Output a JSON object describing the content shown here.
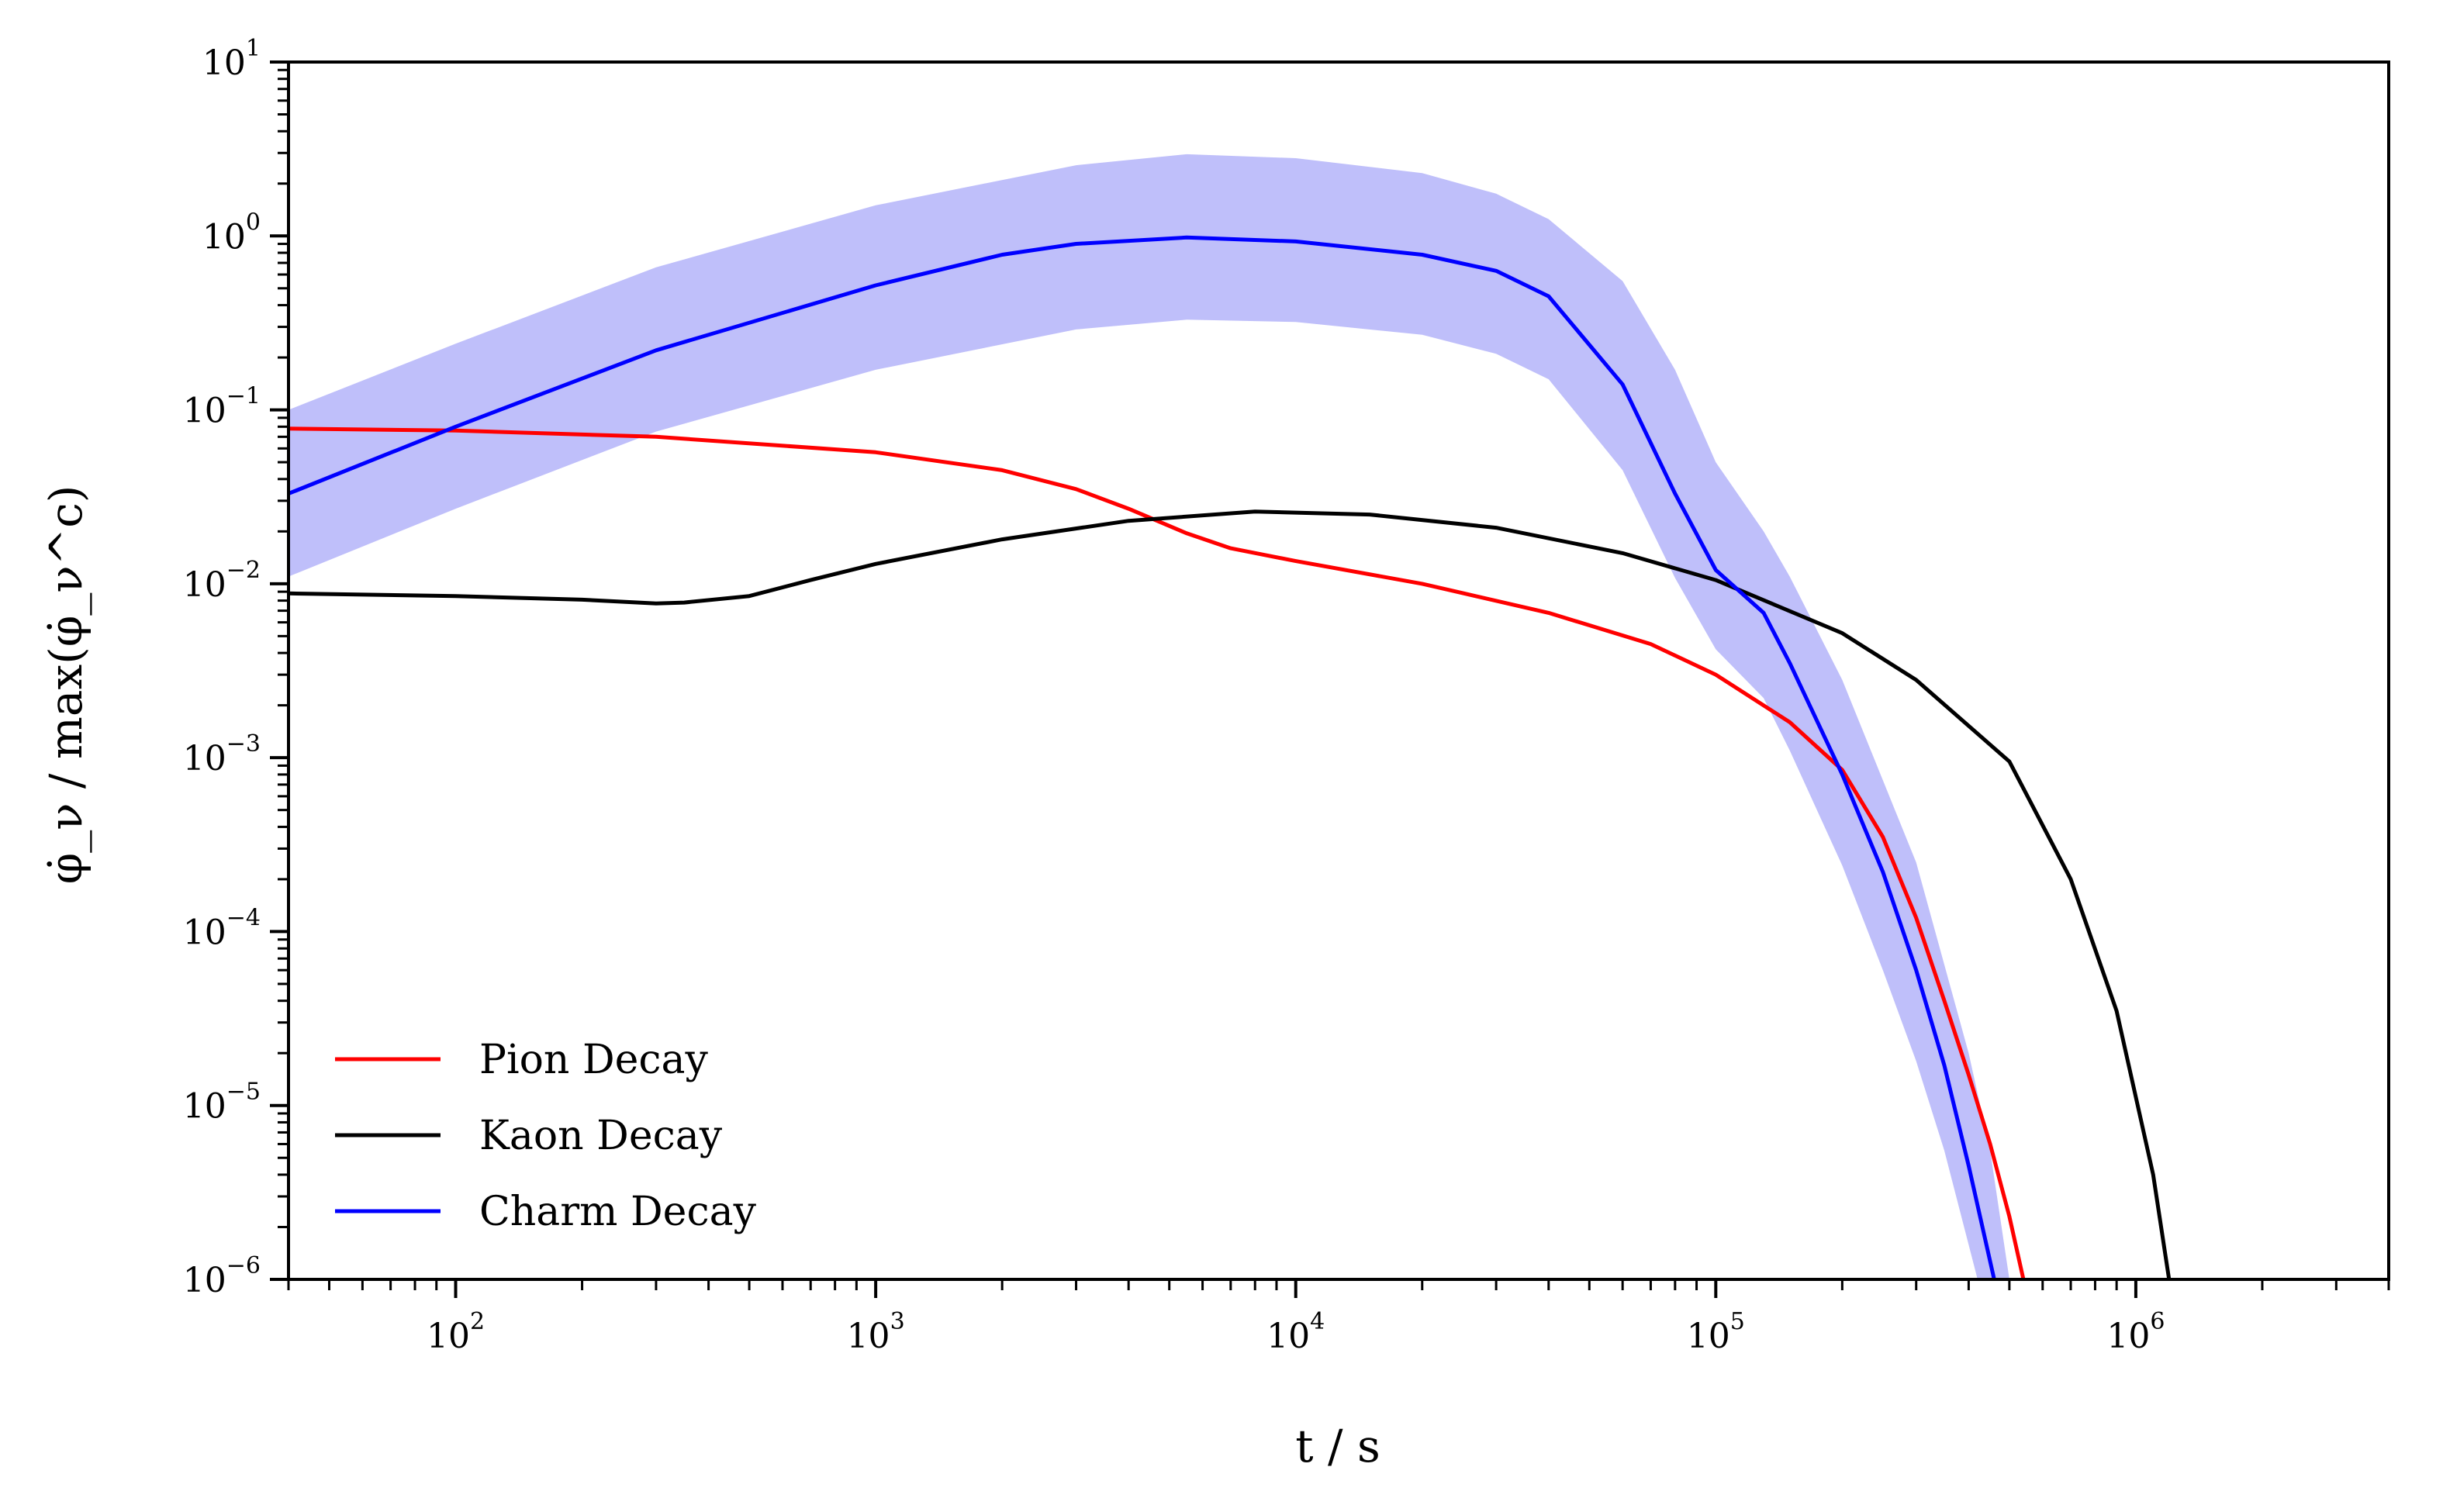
{
  "chart_data": {
    "type": "line",
    "title": "",
    "xlabel": "t / s",
    "ylabel": "φ̇_ν / max(φ̇_ν^c)",
    "x_scale": "log",
    "y_scale": "log",
    "xlim": [
      40,
      4000000
    ],
    "ylim": [
      1e-06,
      10
    ],
    "x_ticks": [
      {
        "value": 100,
        "base": "10",
        "exp": "2"
      },
      {
        "value": 1000,
        "base": "10",
        "exp": "3"
      },
      {
        "value": 10000,
        "base": "10",
        "exp": "4"
      },
      {
        "value": 100000,
        "base": "10",
        "exp": "5"
      },
      {
        "value": 1000000,
        "base": "10",
        "exp": "6"
      }
    ],
    "y_ticks": [
      {
        "value": 1e-06,
        "base": "10",
        "exp": "−6"
      },
      {
        "value": 1e-05,
        "base": "10",
        "exp": "−5"
      },
      {
        "value": 0.0001,
        "base": "10",
        "exp": "−4"
      },
      {
        "value": 0.001,
        "base": "10",
        "exp": "−3"
      },
      {
        "value": 0.01,
        "base": "10",
        "exp": "−2"
      },
      {
        "value": 0.1,
        "base": "10",
        "exp": "−1"
      },
      {
        "value": 1,
        "base": "10",
        "exp": "0"
      },
      {
        "value": 10,
        "base": "10",
        "exp": "1"
      }
    ],
    "grid": false,
    "legend_position": "lower-left",
    "series": [
      {
        "name": "Pion Decay",
        "color": "#ff0000",
        "points": [
          [
            40,
            0.078
          ],
          [
            100,
            0.076
          ],
          [
            300,
            0.07
          ],
          [
            1000,
            0.057
          ],
          [
            2000,
            0.045
          ],
          [
            3000,
            0.035
          ],
          [
            4000,
            0.027
          ],
          [
            5500,
            0.0195
          ],
          [
            7000,
            0.016
          ],
          [
            10000,
            0.0135
          ],
          [
            20000,
            0.01
          ],
          [
            40000,
            0.0068
          ],
          [
            70000,
            0.0045
          ],
          [
            100000,
            0.003
          ],
          [
            150000,
            0.0016
          ],
          [
            200000,
            0.00085
          ],
          [
            250000,
            0.00035
          ],
          [
            300000,
            0.00012
          ],
          [
            350000,
            4e-05
          ],
          [
            400000,
            1.5e-05
          ],
          [
            450000,
            6e-06
          ],
          [
            500000,
            2.3e-06
          ],
          [
            540000,
            1e-06
          ]
        ]
      },
      {
        "name": "Kaon Decay",
        "color": "#000000",
        "points": [
          [
            40,
            0.0088
          ],
          [
            100,
            0.0085
          ],
          [
            200,
            0.0081
          ],
          [
            300,
            0.0077
          ],
          [
            350,
            0.0078
          ],
          [
            500,
            0.0085
          ],
          [
            700,
            0.0105
          ],
          [
            1000,
            0.013
          ],
          [
            2000,
            0.018
          ],
          [
            4000,
            0.023
          ],
          [
            8000,
            0.026
          ],
          [
            15000,
            0.025
          ],
          [
            30000,
            0.021
          ],
          [
            60000,
            0.015
          ],
          [
            100000,
            0.0105
          ],
          [
            200000,
            0.0052
          ],
          [
            300000,
            0.0028
          ],
          [
            500000,
            0.00095
          ],
          [
            700000,
            0.0002
          ],
          [
            900000,
            3.5e-05
          ],
          [
            1100000,
            4e-06
          ],
          [
            1200000,
            1e-06
          ]
        ]
      },
      {
        "name": "Charm Decay",
        "color": "#0000ff",
        "points": [
          [
            40,
            0.033
          ],
          [
            100,
            0.08
          ],
          [
            300,
            0.22
          ],
          [
            1000,
            0.52
          ],
          [
            2000,
            0.78
          ],
          [
            3000,
            0.9
          ],
          [
            5500,
            0.98
          ],
          [
            10000,
            0.93
          ],
          [
            20000,
            0.78
          ],
          [
            30000,
            0.63
          ],
          [
            40000,
            0.45
          ],
          [
            60000,
            0.14
          ],
          [
            80000,
            0.033
          ],
          [
            100000,
            0.012
          ],
          [
            130000,
            0.0068
          ],
          [
            150000,
            0.0035
          ],
          [
            200000,
            0.0008
          ],
          [
            250000,
            0.00022
          ],
          [
            300000,
            6e-05
          ],
          [
            350000,
            1.7e-05
          ],
          [
            400000,
            4.5e-06
          ],
          [
            460000,
            1e-06
          ]
        ],
        "band_upper": [
          [
            40,
            0.1
          ],
          [
            100,
            0.24
          ],
          [
            300,
            0.66
          ],
          [
            1000,
            1.5
          ],
          [
            3000,
            2.55
          ],
          [
            5500,
            2.95
          ],
          [
            10000,
            2.8
          ],
          [
            20000,
            2.3
          ],
          [
            30000,
            1.75
          ],
          [
            40000,
            1.25
          ],
          [
            60000,
            0.55
          ],
          [
            80000,
            0.17
          ],
          [
            100000,
            0.05
          ],
          [
            130000,
            0.02
          ],
          [
            150000,
            0.011
          ],
          [
            200000,
            0.0028
          ],
          [
            300000,
            0.00025
          ],
          [
            400000,
            2e-05
          ],
          [
            450000,
            5.5e-06
          ],
          [
            500000,
            1e-06
          ]
        ],
        "band_lower": [
          [
            40,
            0.011
          ],
          [
            100,
            0.027
          ],
          [
            300,
            0.075
          ],
          [
            1000,
            0.17
          ],
          [
            3000,
            0.29
          ],
          [
            5500,
            0.33
          ],
          [
            10000,
            0.32
          ],
          [
            20000,
            0.27
          ],
          [
            30000,
            0.21
          ],
          [
            40000,
            0.15
          ],
          [
            60000,
            0.045
          ],
          [
            80000,
            0.0108
          ],
          [
            100000,
            0.0042
          ],
          [
            130000,
            0.0022
          ],
          [
            150000,
            0.0011
          ],
          [
            200000,
            0.00024
          ],
          [
            250000,
            6e-05
          ],
          [
            300000,
            1.8e-05
          ],
          [
            350000,
            5.5e-06
          ],
          [
            420000,
            1e-06
          ]
        ],
        "band_color": "#bfbffa"
      }
    ]
  }
}
